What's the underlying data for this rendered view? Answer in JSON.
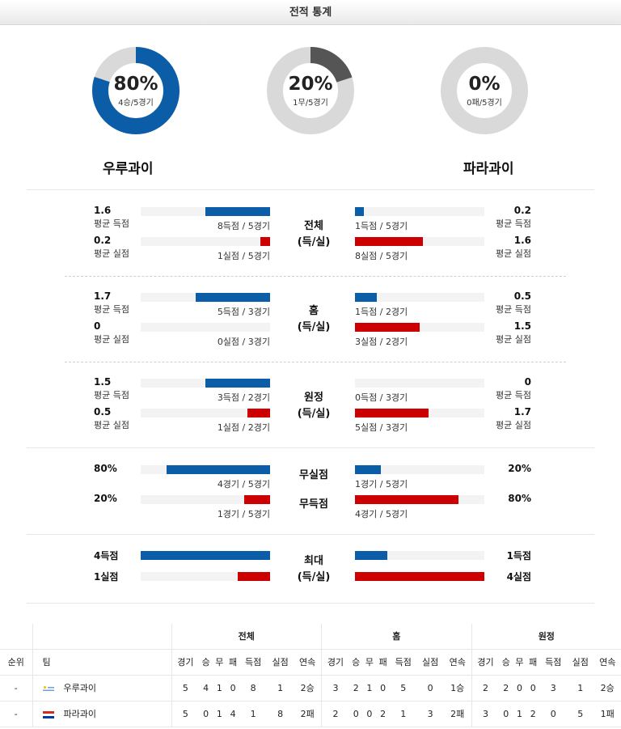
{
  "title": "전적 통계",
  "summary": [
    {
      "pct": "80%",
      "sub": "4승/5경기",
      "fraction": 0.8,
      "color": "#0b5da7"
    },
    {
      "pct": "20%",
      "sub": "1무/5경기",
      "fraction": 0.2,
      "color": "#555555"
    },
    {
      "pct": "0%",
      "sub": "0패/5경기",
      "fraction": 0.0,
      "color": "#555555"
    }
  ],
  "teams": {
    "home": "우루과이",
    "away": "파라과이"
  },
  "sections": {
    "overall": {
      "label1": "전체",
      "label2": "(득/실)",
      "home": [
        {
          "value": "1.6",
          "label": "평균 득점",
          "note": "8득점 / 5경기",
          "fraction": 0.5,
          "color": "blue"
        },
        {
          "value": "0.2",
          "label": "평균 실점",
          "note": "1실점 / 5경기",
          "fraction": 0.075,
          "color": "red"
        }
      ],
      "away": [
        {
          "value": "0.2",
          "label": "평균 득점",
          "note": "1득점 / 5경기",
          "fraction": 0.07,
          "color": "blue"
        },
        {
          "value": "1.6",
          "label": "평균 실점",
          "note": "8실점 / 5경기",
          "fraction": 0.525,
          "color": "red"
        }
      ]
    },
    "home": {
      "label1": "홈",
      "label2": "(득/실)",
      "home": [
        {
          "value": "1.7",
          "label": "평균 득점",
          "note": "5득점 / 3경기",
          "fraction": 0.575,
          "color": "blue"
        },
        {
          "value": "0",
          "label": "평균 실점",
          "note": "0실점 / 3경기",
          "fraction": 0.0,
          "color": "red"
        }
      ],
      "away": [
        {
          "value": "0.5",
          "label": "평균 득점",
          "note": "1득점 / 2경기",
          "fraction": 0.17,
          "color": "blue"
        },
        {
          "value": "1.5",
          "label": "평균 실점",
          "note": "3실점 / 2경기",
          "fraction": 0.5,
          "color": "red"
        }
      ]
    },
    "away": {
      "label1": "원정",
      "label2": "(득/실)",
      "home": [
        {
          "value": "1.5",
          "label": "평균 득점",
          "note": "3득점 / 2경기",
          "fraction": 0.5,
          "color": "blue"
        },
        {
          "value": "0.5",
          "label": "평균 실점",
          "note": "1실점 / 2경기",
          "fraction": 0.175,
          "color": "red"
        }
      ],
      "away": [
        {
          "value": "0",
          "label": "평균 득점",
          "note": "0득점 / 3경기",
          "fraction": 0.0,
          "color": "blue"
        },
        {
          "value": "1.7",
          "label": "평균 실점",
          "note": "5실점 / 3경기",
          "fraction": 0.57,
          "color": "red"
        }
      ]
    },
    "clean": {
      "label1": "무실점",
      "label2": "무득점",
      "home": [
        {
          "value": "80%",
          "note": "4경기 / 5경기",
          "fraction": 0.8,
          "color": "blue"
        },
        {
          "value": "20%",
          "note": "1경기 / 5경기",
          "fraction": 0.2,
          "color": "red"
        }
      ],
      "away": [
        {
          "value": "20%",
          "note": "1경기 / 5경기",
          "fraction": 0.2,
          "color": "blue"
        },
        {
          "value": "80%",
          "note": "4경기 / 5경기",
          "fraction": 0.8,
          "color": "red"
        }
      ]
    },
    "max": {
      "label1": "최대",
      "label2": "(득/실)",
      "home": [
        {
          "value": "4득점",
          "fraction": 1.0,
          "color": "blue"
        },
        {
          "value": "1실점",
          "fraction": 0.25,
          "color": "red"
        }
      ],
      "away": [
        {
          "value": "1득점",
          "fraction": 0.25,
          "color": "blue"
        },
        {
          "value": "4실점",
          "fraction": 1.0,
          "color": "red"
        }
      ]
    }
  },
  "table": {
    "groups": [
      "전체",
      "홈",
      "원정"
    ],
    "col_rank": "순위",
    "col_team": "팀",
    "cols": [
      "경기",
      "승",
      "무",
      "패",
      "득점",
      "실점",
      "연속"
    ],
    "rows": [
      {
        "rank": "-",
        "team": "우루과이",
        "flag": "uruguay",
        "overall": [
          "5",
          "4",
          "1",
          "0",
          "8",
          "1",
          "2승"
        ],
        "home": [
          "3",
          "2",
          "1",
          "0",
          "5",
          "0",
          "1승"
        ],
        "away": [
          "2",
          "2",
          "0",
          "0",
          "3",
          "1",
          "2승"
        ]
      },
      {
        "rank": "-",
        "team": "파라과이",
        "flag": "paraguay",
        "overall": [
          "5",
          "0",
          "1",
          "4",
          "1",
          "8",
          "2패"
        ],
        "home": [
          "2",
          "0",
          "0",
          "2",
          "1",
          "3",
          "2패"
        ],
        "away": [
          "3",
          "0",
          "1",
          "2",
          "0",
          "5",
          "1패"
        ]
      }
    ]
  },
  "colors": {
    "blue": "#0b5da7",
    "red": "#cc0000",
    "ring_bg": "#d9d9d9"
  }
}
